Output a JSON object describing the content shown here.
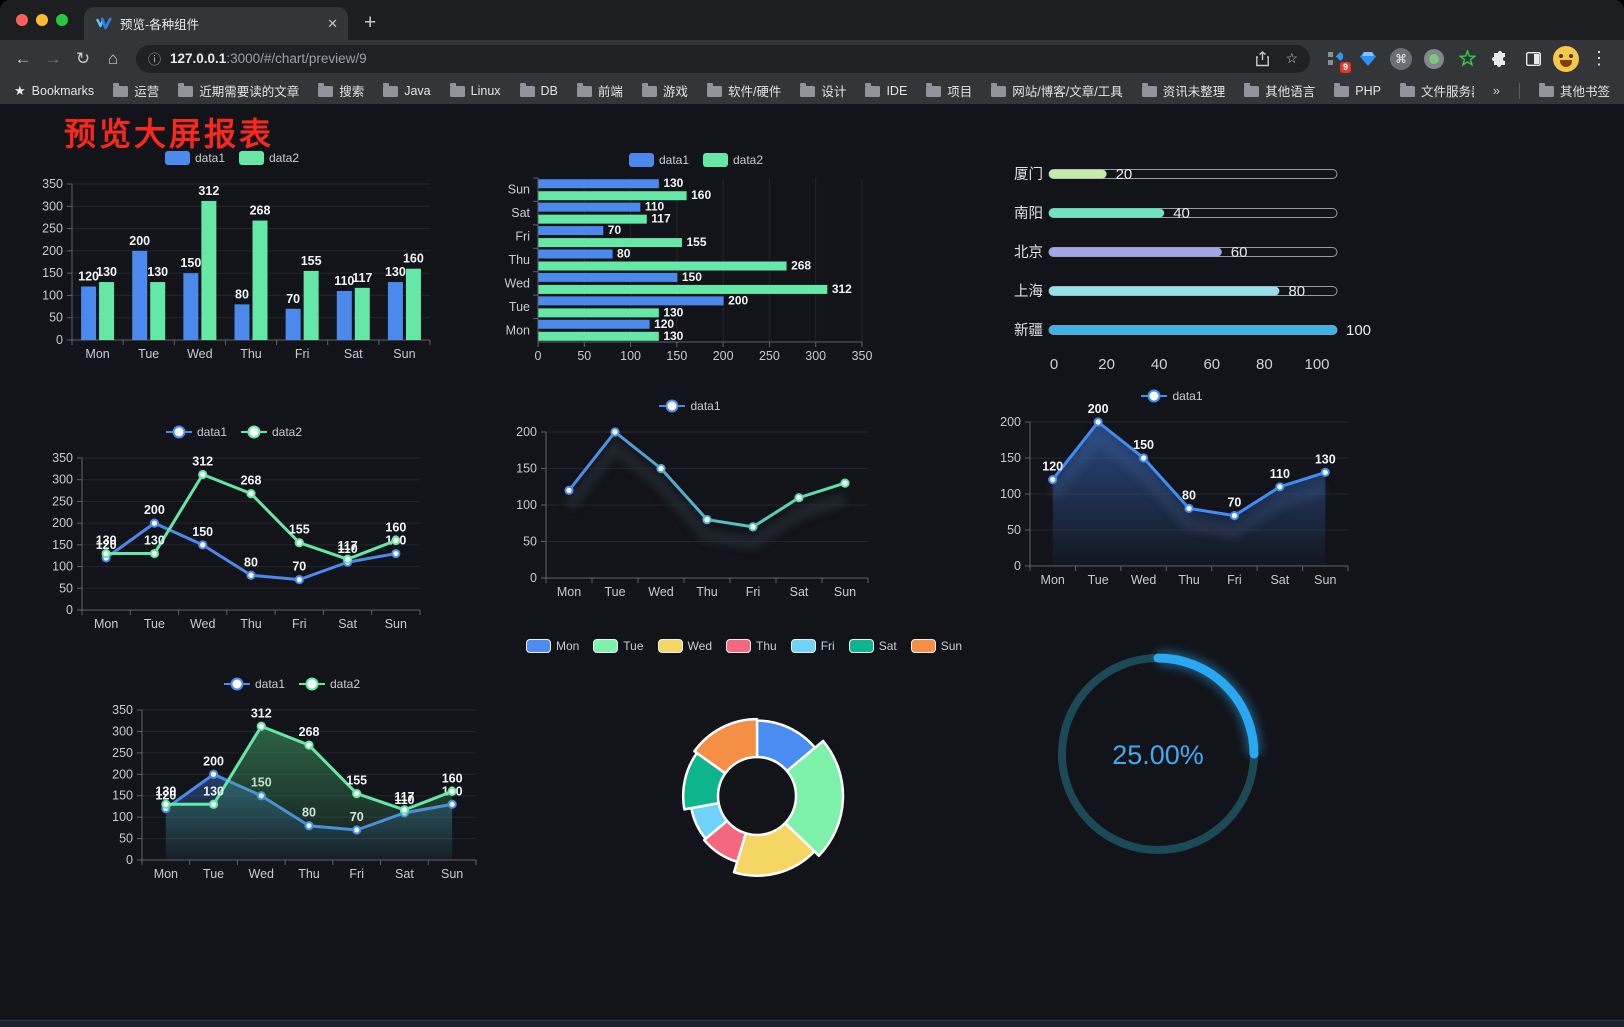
{
  "browser": {
    "tab_title": "预览-各种组件",
    "tab_close": "✕",
    "new_tab_label": "+",
    "url_host": "127.0.0.1",
    "url_rest": ":3000/#/chart/preview/9",
    "bookmarks_label": "Bookmarks",
    "bookmarks": [
      "运营",
      "近期需要读的文章",
      "搜索",
      "Java",
      "Linux",
      "DB",
      "前端",
      "游戏",
      "软件/硬件",
      "设计",
      "IDE",
      "项目",
      "网站/博客/文章/工具",
      "资讯未整理",
      "其他语言",
      "PHP",
      "文件服务器"
    ],
    "overflow": "»",
    "other_bookmarks": "其他书签",
    "extension_badge": "9",
    "traffic_lights": [
      "#ff5f57",
      "#febc2e",
      "#28c840"
    ],
    "icons": {
      "back": "←",
      "forward": "→",
      "reload": "↻",
      "home": "⌂",
      "info": "ⓘ",
      "share": "share-icon",
      "star": "☆",
      "menu": "⋮",
      "bookmarks_star": "★",
      "cmd": "⌘"
    }
  },
  "page": {
    "title": "预览大屏报表",
    "title_color": "#f8281f"
  },
  "chart_data": [
    {
      "id": "grouped-bar",
      "type": "bar",
      "categories": [
        "Mon",
        "Tue",
        "Wed",
        "Thu",
        "Fri",
        "Sat",
        "Sun"
      ],
      "series": [
        {
          "name": "data1",
          "color": "#4b89ec",
          "values": [
            120,
            200,
            150,
            80,
            70,
            110,
            130
          ]
        },
        {
          "name": "data2",
          "color": "#65e7a6",
          "values": [
            130,
            130,
            312,
            268,
            155,
            117,
            160
          ]
        }
      ],
      "ylim": [
        0,
        350
      ],
      "ystep": 50,
      "legend": "rect",
      "value_labels": true,
      "grid": true
    },
    {
      "id": "horizontal-bar",
      "type": "hbar",
      "categories": [
        "Mon",
        "Tue",
        "Wed",
        "Thu",
        "Fri",
        "Sat",
        "Sun"
      ],
      "display_order_top_to_bottom": [
        "Sun",
        "Sat",
        "Fri",
        "Thu",
        "Wed",
        "Tue",
        "Mon"
      ],
      "series": [
        {
          "name": "data1",
          "color": "#4b89ec",
          "values": [
            120,
            200,
            150,
            80,
            70,
            110,
            130
          ]
        },
        {
          "name": "data2",
          "color": "#65e7a6",
          "values": [
            130,
            130,
            312,
            268,
            155,
            117,
            160
          ]
        }
      ],
      "xlim": [
        0,
        350
      ],
      "xstep": 50,
      "legend": "rect",
      "value_labels": true,
      "grid": true
    },
    {
      "id": "progress-bars",
      "type": "progress",
      "max": 100,
      "xticks": [
        0,
        20,
        40,
        60,
        80,
        100
      ],
      "rows": [
        {
          "label": "厦门",
          "value": 20,
          "color": "#c4ebad"
        },
        {
          "label": "南阳",
          "value": 40,
          "color": "#6be6c1"
        },
        {
          "label": "北京",
          "value": 60,
          "color": "#a0a7e6"
        },
        {
          "label": "上海",
          "value": 80,
          "color": "#96dee8"
        },
        {
          "label": "新疆",
          "value": 100,
          "color": "#3fb1e3"
        }
      ]
    },
    {
      "id": "line-two-series",
      "type": "line",
      "categories": [
        "Mon",
        "Tue",
        "Wed",
        "Thu",
        "Fri",
        "Sat",
        "Sun"
      ],
      "ylim": [
        0,
        350
      ],
      "ystep": 50,
      "legend": "line",
      "series": [
        {
          "name": "data1",
          "color": "#4b89ec",
          "values": [
            120,
            200,
            150,
            80,
            70,
            110,
            130
          ],
          "markers": true,
          "labels": true
        },
        {
          "name": "data2",
          "color": "#65e7a6",
          "values": [
            130,
            130,
            312,
            268,
            155,
            117,
            160
          ],
          "markers": true,
          "labels": true
        }
      ]
    },
    {
      "id": "line-gradient",
      "type": "line",
      "categories": [
        "Mon",
        "Tue",
        "Wed",
        "Thu",
        "Fri",
        "Sat",
        "Sun"
      ],
      "ylim": [
        0,
        200
      ],
      "ystep": 50,
      "legend": "line",
      "shadow": true,
      "series": [
        {
          "name": "data1",
          "gradient": [
            "#4b89ec",
            "#5fe6a2"
          ],
          "values": [
            120,
            200,
            150,
            80,
            70,
            110,
            130
          ],
          "markers": true,
          "labels": false
        }
      ]
    },
    {
      "id": "line-area",
      "type": "line",
      "categories": [
        "Mon",
        "Tue",
        "Wed",
        "Thu",
        "Fri",
        "Sat",
        "Sun"
      ],
      "ylim": [
        0,
        200
      ],
      "ystep": 50,
      "legend": "line",
      "shadow": true,
      "series": [
        {
          "name": "data1",
          "color": "#3f8df5",
          "values": [
            120,
            200,
            150,
            80,
            70,
            110,
            130
          ],
          "markers": true,
          "labels": true,
          "area": [
            "rgba(63,125,233,0.50)",
            "rgba(63,125,233,0.03)"
          ]
        }
      ]
    },
    {
      "id": "line-two-areas",
      "type": "line",
      "categories": [
        "Mon",
        "Tue",
        "Wed",
        "Thu",
        "Fri",
        "Sat",
        "Sun"
      ],
      "ylim": [
        0,
        350
      ],
      "ystep": 50,
      "legend": "line",
      "series": [
        {
          "name": "data1",
          "color": "#4b89ec",
          "values": [
            120,
            200,
            150,
            80,
            70,
            110,
            130
          ],
          "markers": true,
          "labels": true,
          "area": [
            "rgba(59,112,202,0.45)",
            "rgba(59,112,202,0.04)"
          ]
        },
        {
          "name": "data2",
          "color": "#65e7a6",
          "values": [
            130,
            130,
            312,
            268,
            155,
            117,
            160
          ],
          "markers": true,
          "labels": true,
          "area": [
            "rgba(72,178,114,0.50)",
            "rgba(72,178,114,0.04)"
          ]
        }
      ]
    },
    {
      "id": "rose-pie",
      "type": "pie",
      "legend": "pill",
      "inner_radius": 39,
      "max_radius": 86,
      "slices": [
        {
          "label": "Mon",
          "value": 120,
          "color": "#4a8cf2"
        },
        {
          "label": "Tue",
          "value": 200,
          "color": "#7df0a9"
        },
        {
          "label": "Wed",
          "value": 150,
          "color": "#f5d662"
        },
        {
          "label": "Thu",
          "value": 80,
          "color": "#f5677e"
        },
        {
          "label": "Fri",
          "value": 70,
          "color": "#6fd3f7"
        },
        {
          "label": "Sat",
          "value": 110,
          "color": "#0eb48c"
        },
        {
          "label": "Sun",
          "value": 130,
          "color": "#f58f45"
        }
      ]
    },
    {
      "id": "gauge",
      "type": "gauge",
      "value": 25,
      "display": "25.00%",
      "color": "#29a7f0",
      "track_color": "#1c4956",
      "text_color": "#41abf2"
    }
  ]
}
